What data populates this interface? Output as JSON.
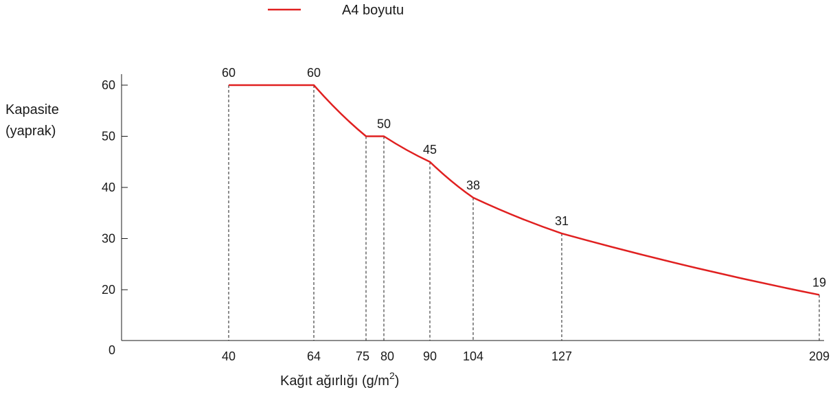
{
  "chart_data": {
    "type": "line",
    "legend": {
      "label": "A4 boyutu",
      "placement": "top"
    },
    "ylabel_line1": "Kapasite",
    "ylabel_line2": "(yaprak)",
    "xlabel_prefix": "Kağıt ağırlığı (g/m",
    "xlabel_sup": "2",
    "xlabel_suffix": ")",
    "origin_label": "0",
    "ylim": [
      0,
      60
    ],
    "xlim": [
      40,
      209
    ],
    "yticks": [
      20,
      30,
      40,
      50,
      60
    ],
    "series": [
      {
        "color": "#e02020",
        "points": [
          {
            "x": 40,
            "y": 60
          },
          {
            "x": 64,
            "y": 60
          },
          {
            "x": 75,
            "y": 50
          },
          {
            "x": 80,
            "y": 50
          },
          {
            "x": 90,
            "y": 45
          },
          {
            "x": 104,
            "y": 38
          },
          {
            "x": 127,
            "y": 31
          },
          {
            "x": 209,
            "y": 19
          }
        ]
      }
    ],
    "data_labels": [
      {
        "x": 40,
        "y": 60,
        "text": "60"
      },
      {
        "x": 64,
        "y": 60,
        "text": "60"
      },
      {
        "x": 80,
        "y": 50,
        "text": "50"
      },
      {
        "x": 90,
        "y": 45,
        "text": "45"
      },
      {
        "x": 104,
        "y": 38,
        "text": "38"
      },
      {
        "x": 127,
        "y": 31,
        "text": "31"
      },
      {
        "x": 209,
        "y": 19,
        "text": "19"
      }
    ],
    "xtick_labels": [
      {
        "x": 40,
        "text": "40"
      },
      {
        "x": 64,
        "text": "64"
      },
      {
        "x": 75,
        "text": "75"
      },
      {
        "x": 80,
        "text": "80"
      },
      {
        "x": 90,
        "text": "90"
      },
      {
        "x": 104,
        "text": "104"
      },
      {
        "x": 127,
        "text": "127"
      },
      {
        "x": 209,
        "text": "209"
      }
    ],
    "grid": false
  }
}
